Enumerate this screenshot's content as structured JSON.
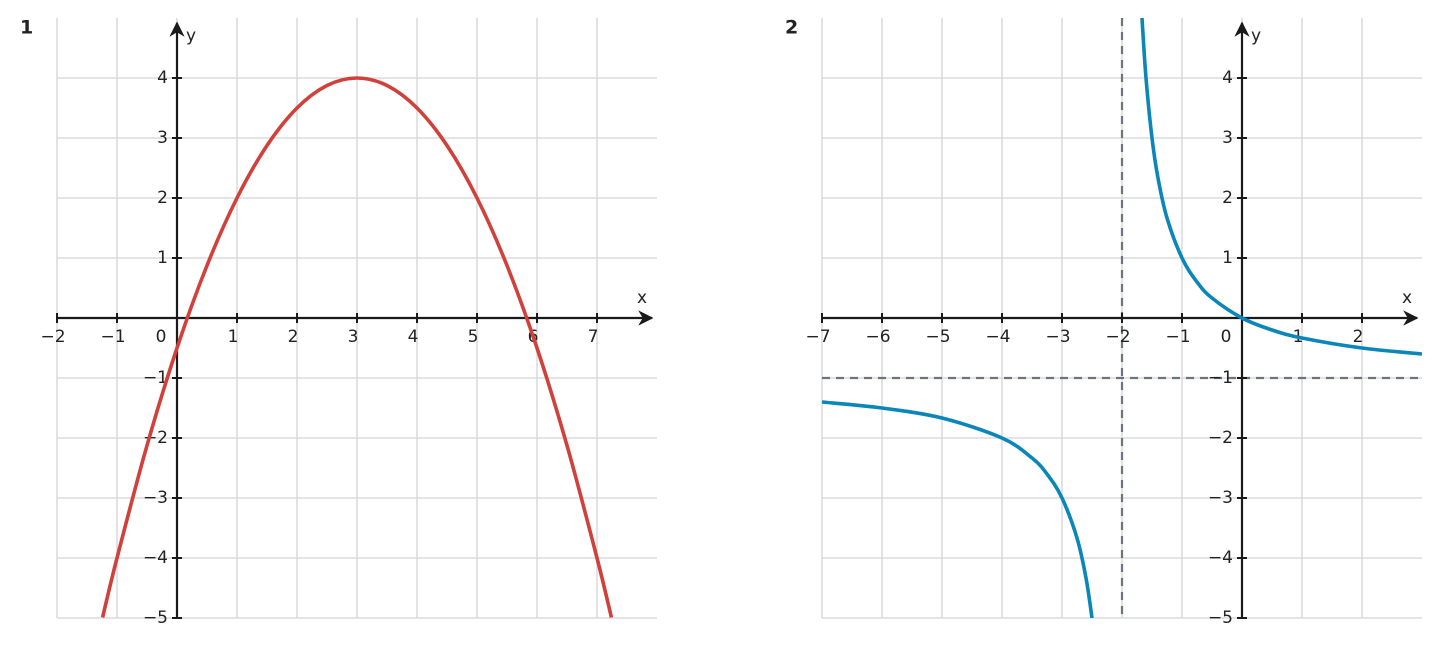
{
  "chart_data": [
    {
      "type": "line",
      "title": "1",
      "x_label": "x",
      "y_label": "y",
      "xlim": [
        -2,
        8
      ],
      "ylim": [
        -5,
        5
      ],
      "grid": true,
      "xticks": [
        {
          "value": -2,
          "label": "−2"
        },
        {
          "value": -1,
          "label": "−1"
        },
        0,
        1,
        2,
        3,
        4,
        5,
        6,
        7
      ],
      "yticks": [
        {
          "value": -5,
          "label": "−5"
        },
        {
          "value": -4,
          "label": "−4"
        },
        {
          "value": -3,
          "label": "−3"
        },
        {
          "value": -2,
          "label": "−2"
        },
        {
          "value": -1,
          "label": "−1"
        },
        1,
        2,
        3,
        4
      ],
      "series": [
        {
          "color": "#d0413b",
          "x": [
            -1.24,
            -1,
            -0.5,
            0,
            0.5,
            1,
            1.5,
            2,
            2.5,
            3,
            3.5,
            4,
            4.5,
            5,
            5.5,
            6,
            6.5,
            7,
            7.24
          ],
          "values": [
            -4.99,
            -4,
            -2.125,
            -0.5,
            0.875,
            2,
            2.875,
            3.5,
            3.875,
            4,
            3.875,
            3.5,
            2.875,
            2,
            0.875,
            -0.5,
            -2.125,
            -4,
            -4.99
          ]
        }
      ]
    },
    {
      "type": "line",
      "title": "2",
      "x_label": "x",
      "y_label": "y",
      "xlim": [
        -7,
        3
      ],
      "ylim": [
        -5,
        5
      ],
      "grid": true,
      "xticks": [
        {
          "value": -7,
          "label": "−7"
        },
        {
          "value": -6,
          "label": "−6"
        },
        {
          "value": -5,
          "label": "−5"
        },
        {
          "value": -4,
          "label": "−4"
        },
        {
          "value": -3,
          "label": "−3"
        },
        {
          "value": -2,
          "label": "−2"
        },
        {
          "value": -1,
          "label": "−1"
        },
        0,
        1,
        2
      ],
      "yticks": [
        {
          "value": -5,
          "label": "−5"
        },
        {
          "value": -4,
          "label": "−4"
        },
        {
          "value": -3,
          "label": "−3"
        },
        {
          "value": -2,
          "label": "−2"
        },
        {
          "value": -1,
          "label": "−1"
        },
        1,
        2,
        3,
        4
      ],
      "asymptotes": {
        "x": -2,
        "y": -1
      },
      "series": [
        {
          "color": "#0a86b9",
          "x": [
            -7,
            -6,
            -5,
            -4,
            -3.5,
            -3.25,
            -3,
            -2.75,
            -2.6,
            -2.5,
            -2,
            -1.667,
            -1.6,
            -1.5,
            -1.4,
            -1.25,
            -1,
            -0.75,
            -0.5,
            0,
            0.5,
            1,
            2,
            3
          ],
          "values": [
            -1.4,
            -1.5,
            -1.667,
            -2,
            -2.333,
            -2.6,
            -3,
            -3.667,
            -4.333,
            -5,
            null,
            5,
            4,
            3,
            2.333,
            1.667,
            1,
            0.6,
            0.333,
            0,
            -0.2,
            -0.333,
            -0.5,
            -0.6
          ]
        }
      ]
    }
  ]
}
